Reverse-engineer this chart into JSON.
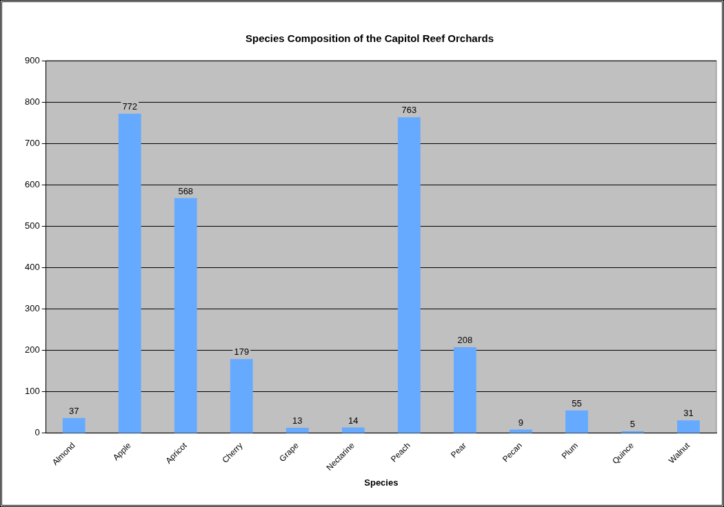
{
  "chart_data": {
    "type": "bar",
    "title": "Species Composition of the Capitol Reef Orchards",
    "xlabel": "Species",
    "categories": [
      "Almond",
      "Apple",
      "Apricot",
      "Cherry",
      "Grape",
      "Nectarine",
      "Peach",
      "Pear",
      "Pecan",
      "Plum",
      "Quince",
      "Walnut"
    ],
    "values": [
      37,
      772,
      568,
      179,
      13,
      14,
      763,
      208,
      9,
      55,
      5,
      31
    ],
    "color": "#66aaff",
    "ylim": [
      0,
      900
    ],
    "yticks": [
      0,
      100,
      200,
      300,
      400,
      500,
      600,
      700,
      800,
      900
    ],
    "grid": "y",
    "legend": false,
    "data_labels": true
  }
}
